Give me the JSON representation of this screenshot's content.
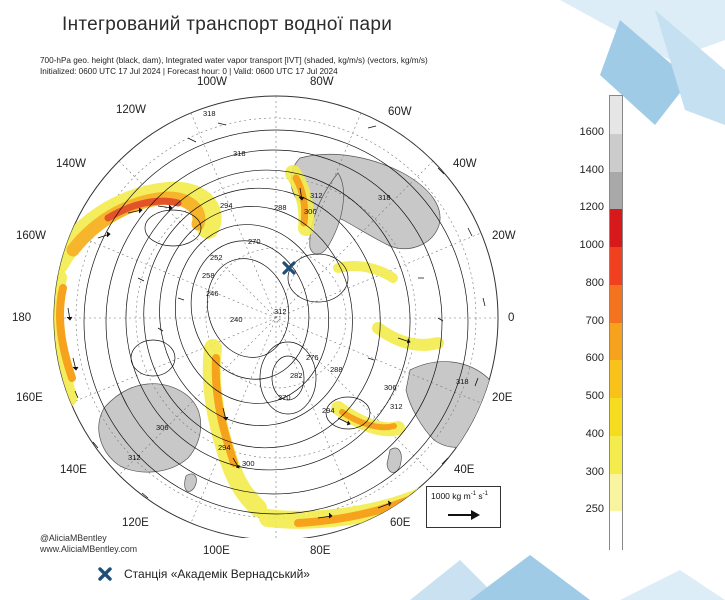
{
  "slide": {
    "title": "Інтегрований транспорт водної пари"
  },
  "map": {
    "header_line1": "700-hPa geo. height (black, dam), Integrated water vapor transport [IVT] (shaded, kg/m/s) (vectors, kg/m/s)",
    "header_line2": "Initialized: 0600 UTC 17 Jul 2024 | Forecast hour: 0 | Valid: 0600 UTC 17 Jul 2024",
    "longitude_labels": [
      "100W",
      "80W",
      "60W",
      "120W",
      "140W",
      "40W",
      "160W",
      "20W",
      "180",
      "0",
      "160E",
      "20E",
      "140E",
      "40E",
      "120E",
      "60E",
      "100E",
      "80E"
    ],
    "contour_labels": [
      "318",
      "318",
      "294",
      "288",
      "312",
      "306",
      "318",
      "270",
      "252",
      "258",
      "246",
      "240",
      "312",
      "276",
      "282",
      "288",
      "294",
      "306",
      "312",
      "318",
      "306",
      "294",
      "300",
      "312",
      "270"
    ],
    "credit_handle": "@AliciaMBentley",
    "credit_url": "www.AliciaMBentley.com",
    "vector_legend_value": "1000 kg m",
    "vector_legend_sup1": "-1",
    "vector_legend_mid": " s",
    "vector_legend_sup2": "-1"
  },
  "station": {
    "label": "Станція «Академік Вернадський»",
    "marker_color": "#1f4e79"
  },
  "colorbar": {
    "ticks": [
      "1600",
      "1400",
      "1200",
      "1000",
      "800",
      "700",
      "600",
      "500",
      "400",
      "300",
      "250"
    ],
    "colors": [
      "#e6e6e6",
      "#cccccc",
      "#a9a9a9",
      "#d7191c",
      "#f0401f",
      "#f4731f",
      "#f7a21d",
      "#f9c21a",
      "#f6dc1f",
      "#f3ec4c",
      "#f8f4a0",
      "#ffffff"
    ]
  }
}
